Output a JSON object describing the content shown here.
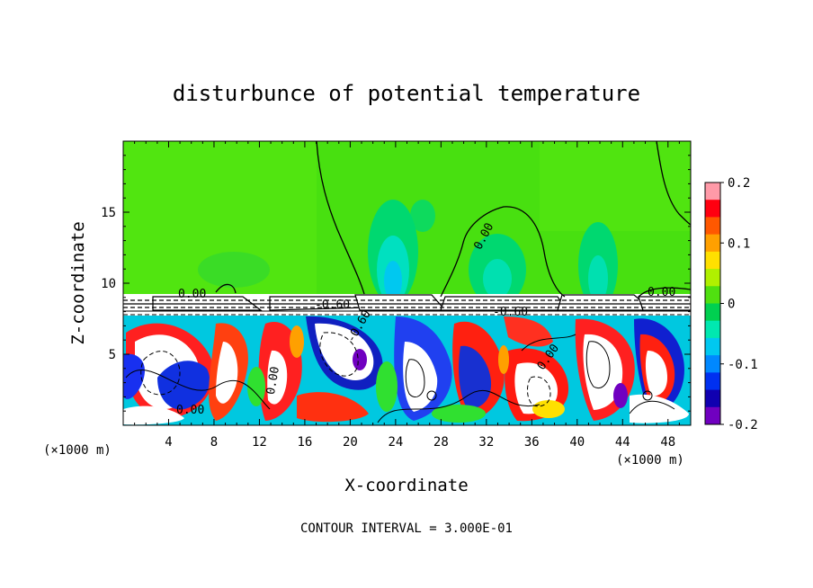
{
  "chart_data": {
    "type": "heatmap",
    "title": "disturbunce of potential temperature",
    "xlabel": "X-coordinate",
    "ylabel": "Z-coordinate",
    "x_unit": "(×1000 m)",
    "z_unit": "(×1000 m)",
    "xlim": [
      0,
      50
    ],
    "zlim": [
      0,
      20
    ],
    "x_ticks": [
      "4",
      "8",
      "12",
      "16",
      "20",
      "24",
      "28",
      "32",
      "36",
      "40",
      "44",
      "48"
    ],
    "z_ticks": [
      "5",
      "10",
      "15"
    ],
    "colorbar": {
      "range": [
        -0.2,
        0.2
      ],
      "ticks": [
        "0.2",
        "0.1",
        "0",
        "-0.1",
        "-0.2"
      ],
      "colors": [
        "#ff9aa8",
        "#ff0010",
        "#ff5800",
        "#ffa000",
        "#ffe000",
        "#b0f000",
        "#50e010",
        "#00d050",
        "#00e8b0",
        "#00c8f0",
        "#0088ff",
        "#0030f0",
        "#1000b0",
        "#7000c0"
      ]
    },
    "contour_labels": [
      "0.00",
      "0.00",
      "0.00",
      "0.00",
      "0.00",
      "0.00",
      "-0.60",
      "-0.60",
      "-0.60"
    ],
    "contour_note": "CONTOUR INTERVAL = 3.000E-01"
  }
}
